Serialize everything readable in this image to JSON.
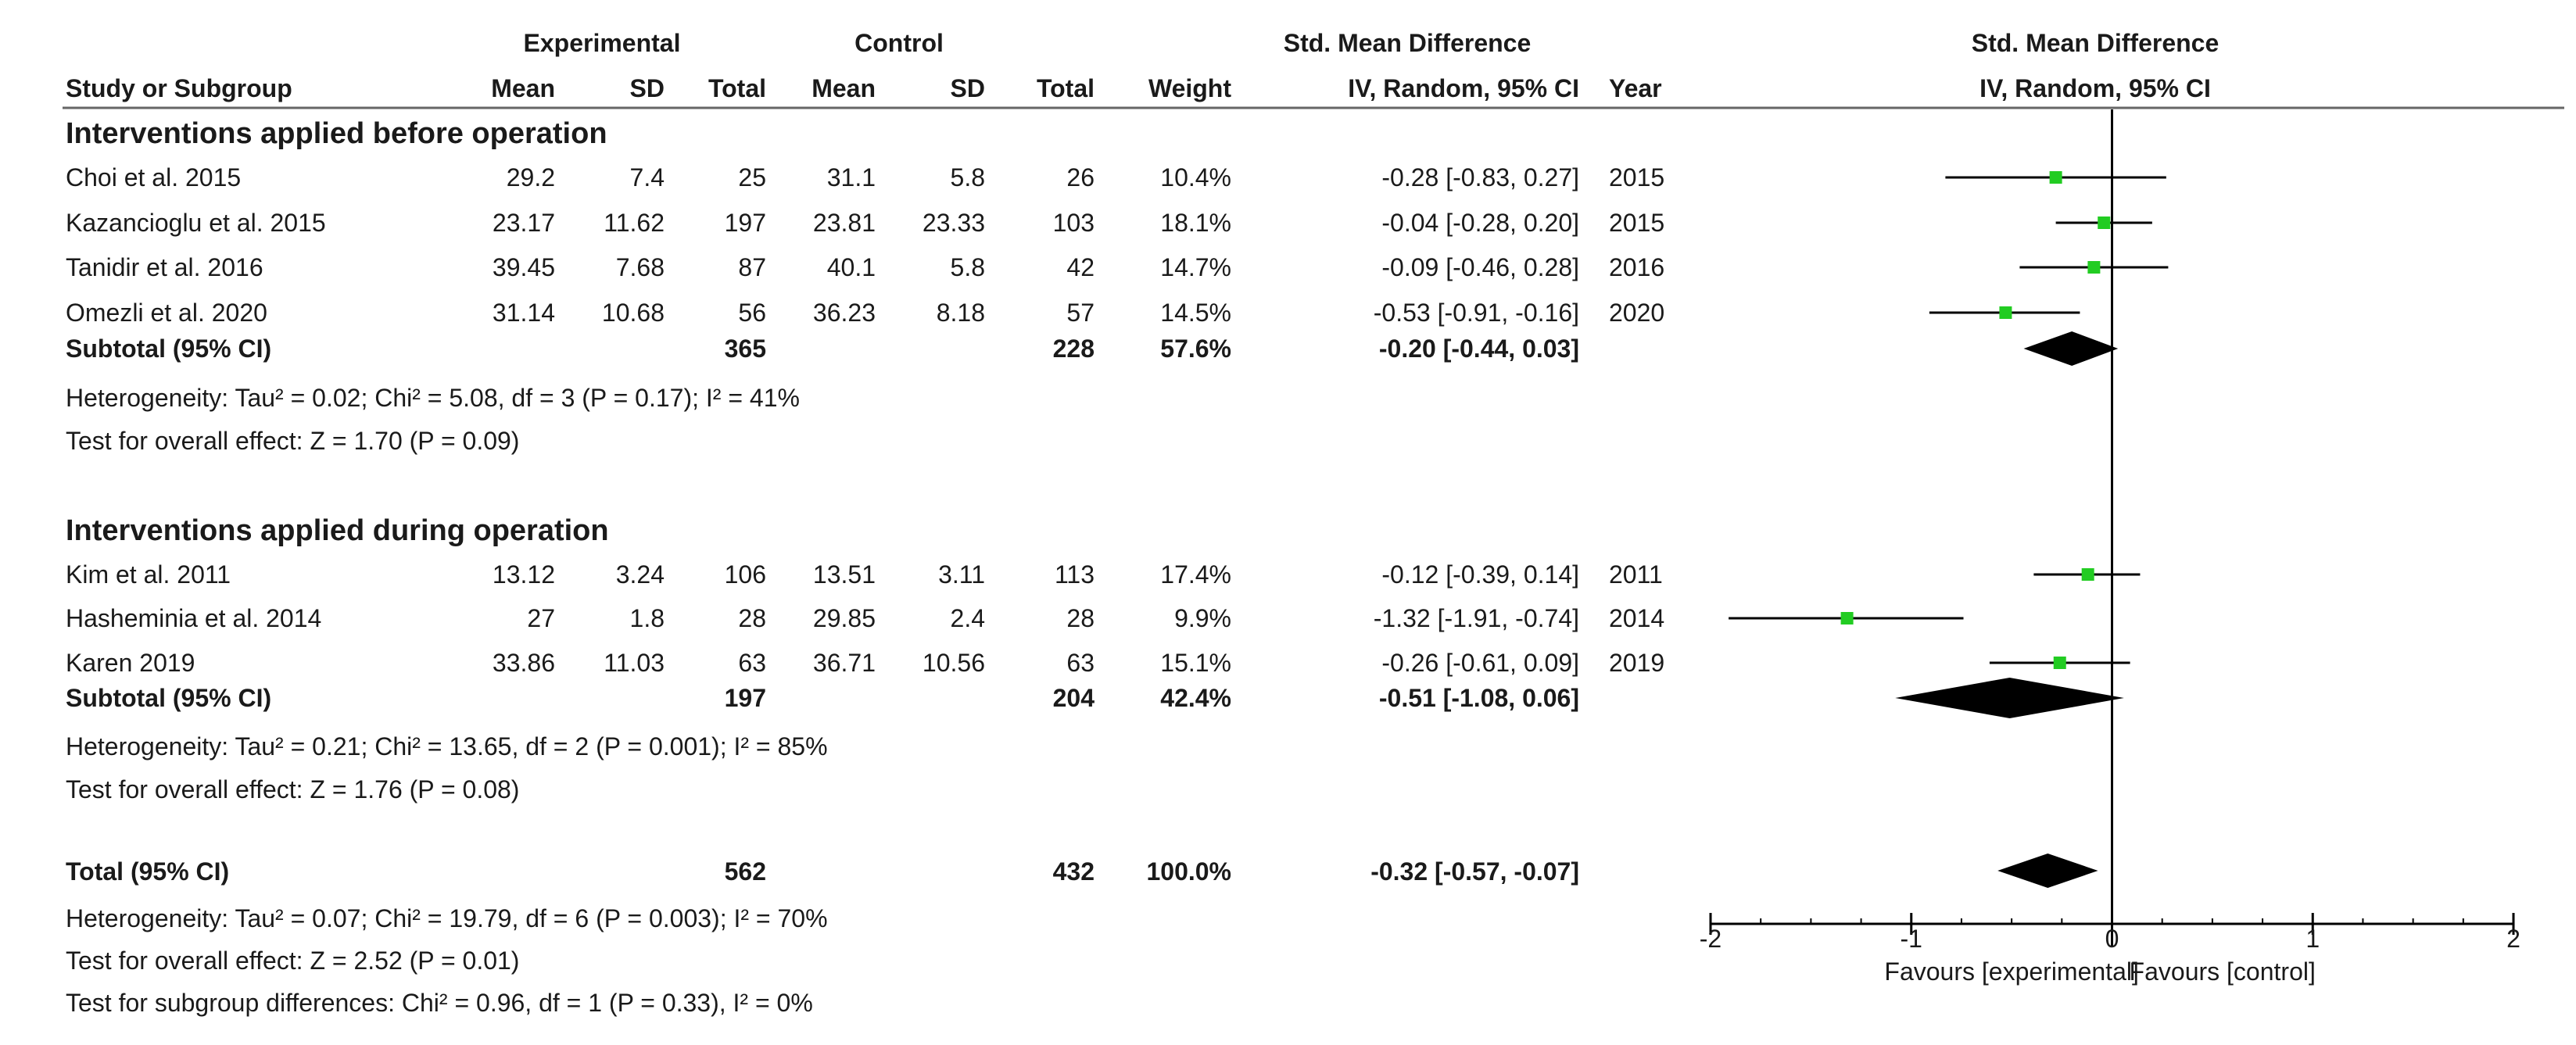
{
  "header": {
    "group_exp": "Experimental",
    "group_ctrl": "Control",
    "smd_title": "Std. Mean Difference",
    "col_study": "Study or Subgroup",
    "col_mean": "Mean",
    "col_sd": "SD",
    "col_total": "Total",
    "col_weight": "Weight",
    "col_ci": "IV, Random, 95% CI",
    "col_year": "Year",
    "plot_title": "Std. Mean Difference",
    "plot_sub": "IV, Random, 95% CI"
  },
  "groups": [
    {
      "title": "Interventions applied before operation",
      "studies": [
        {
          "name": "Choi et al. 2015",
          "e_mean": "29.2",
          "e_sd": "7.4",
          "e_total": "25",
          "c_mean": "31.1",
          "c_sd": "5.8",
          "c_total": "26",
          "weight": "10.4%",
          "ci": "-0.28 [-0.83, 0.27]",
          "year": "2015"
        },
        {
          "name": "Kazancioglu et al. 2015",
          "e_mean": "23.17",
          "e_sd": "11.62",
          "e_total": "197",
          "c_mean": "23.81",
          "c_sd": "23.33",
          "c_total": "103",
          "weight": "18.1%",
          "ci": "-0.04 [-0.28, 0.20]",
          "year": "2015"
        },
        {
          "name": "Tanidir et al. 2016",
          "e_mean": "39.45",
          "e_sd": "7.68",
          "e_total": "87",
          "c_mean": "40.1",
          "c_sd": "5.8",
          "c_total": "42",
          "weight": "14.7%",
          "ci": "-0.09 [-0.46, 0.28]",
          "year": "2016"
        },
        {
          "name": "Omezli et al. 2020",
          "e_mean": "31.14",
          "e_sd": "10.68",
          "e_total": "56",
          "c_mean": "36.23",
          "c_sd": "8.18",
          "c_total": "57",
          "weight": "14.5%",
          "ci": "-0.53 [-0.91, -0.16]",
          "year": "2020"
        }
      ],
      "subtotal": {
        "label": "Subtotal (95% CI)",
        "e_total": "365",
        "c_total": "228",
        "weight": "57.6%",
        "ci": "-0.20 [-0.44, 0.03]"
      },
      "heterogeneity": "Heterogeneity: Tau² = 0.02; Chi² = 5.08, df = 3 (P = 0.17); I² = 41%",
      "overall": "Test for overall effect: Z = 1.70 (P = 0.09)"
    },
    {
      "title": "Interventions applied during operation",
      "studies": [
        {
          "name": "Kim et al. 2011",
          "e_mean": "13.12",
          "e_sd": "3.24",
          "e_total": "106",
          "c_mean": "13.51",
          "c_sd": "3.11",
          "c_total": "113",
          "weight": "17.4%",
          "ci": "-0.12 [-0.39, 0.14]",
          "year": "2011"
        },
        {
          "name": "Hasheminia et al. 2014",
          "e_mean": "27",
          "e_sd": "1.8",
          "e_total": "28",
          "c_mean": "29.85",
          "c_sd": "2.4",
          "c_total": "28",
          "weight": "9.9%",
          "ci": "-1.32 [-1.91, -0.74]",
          "year": "2014"
        },
        {
          "name": "Karen 2019",
          "e_mean": "33.86",
          "e_sd": "11.03",
          "e_total": "63",
          "c_mean": "36.71",
          "c_sd": "10.56",
          "c_total": "63",
          "weight": "15.1%",
          "ci": "-0.26 [-0.61, 0.09]",
          "year": "2019"
        }
      ],
      "subtotal": {
        "label": "Subtotal (95% CI)",
        "e_total": "197",
        "c_total": "204",
        "weight": "42.4%",
        "ci": "-0.51 [-1.08, 0.06]"
      },
      "heterogeneity": "Heterogeneity: Tau² = 0.21; Chi² = 13.65, df = 2 (P = 0.001); I² = 85%",
      "overall": "Test for overall effect: Z = 1.76 (P = 0.08)"
    }
  ],
  "total": {
    "label": "Total (95% CI)",
    "e_total": "562",
    "c_total": "432",
    "weight": "100.0%",
    "ci": "-0.32 [-0.57, -0.07]",
    "heterogeneity": "Heterogeneity: Tau² = 0.07; Chi² = 19.79, df = 6 (P = 0.003); I² = 70%",
    "overall": "Test for overall effect: Z = 2.52 (P = 0.01)",
    "subgroup": "Test for subgroup differences: Chi² = 0.96, df = 1 (P = 0.33), I² = 0%"
  },
  "chart_data": {
    "type": "forest",
    "xlim": [
      -2,
      2
    ],
    "ticks": [
      "-2",
      "-1",
      "0",
      "1",
      "2"
    ],
    "favours_left": "Favours [experimental]",
    "favours_right": "Favours [control]",
    "studies": [
      {
        "name": "Choi et al. 2015",
        "est": -0.28,
        "lo": -0.83,
        "hi": 0.27
      },
      {
        "name": "Kazancioglu et al. 2015",
        "est": -0.04,
        "lo": -0.28,
        "hi": 0.2
      },
      {
        "name": "Tanidir et al. 2016",
        "est": -0.09,
        "lo": -0.46,
        "hi": 0.28
      },
      {
        "name": "Omezli et al. 2020",
        "est": -0.53,
        "lo": -0.91,
        "hi": -0.16
      },
      {
        "name": "Kim et al. 2011",
        "est": -0.12,
        "lo": -0.39,
        "hi": 0.14
      },
      {
        "name": "Hasheminia et al. 2014",
        "est": -1.32,
        "lo": -1.91,
        "hi": -0.74
      },
      {
        "name": "Karen 2019",
        "est": -0.26,
        "lo": -0.61,
        "hi": 0.09
      }
    ],
    "summaries": [
      {
        "name": "Subtotal before operation",
        "est": -0.2,
        "lo": -0.44,
        "hi": 0.03
      },
      {
        "name": "Subtotal during operation",
        "est": -0.51,
        "lo": -1.08,
        "hi": 0.06
      },
      {
        "name": "Total",
        "est": -0.32,
        "lo": -0.57,
        "hi": -0.07
      }
    ],
    "marker_color": "#22cc22",
    "line_color": "#000000"
  }
}
